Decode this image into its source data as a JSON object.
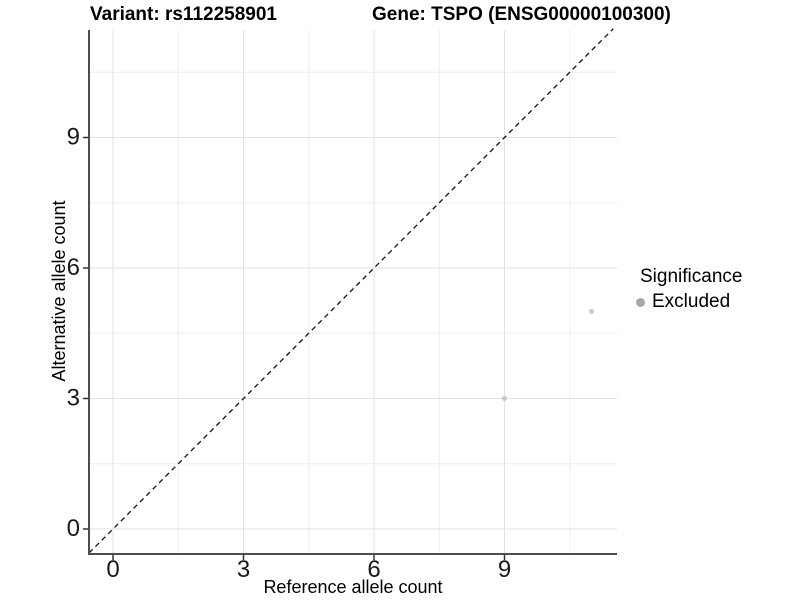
{
  "chart_data": {
    "type": "scatter",
    "title_left": "Variant: rs112258901",
    "title_right": "Gene: TSPO (ENSG00000100300)",
    "xlabel": "Reference allele count",
    "ylabel": "Alternative allele count",
    "xlim": [
      -0.55,
      11.6
    ],
    "ylim": [
      -0.55,
      11.5
    ],
    "x_ticks": [
      0,
      3,
      6,
      9
    ],
    "y_ticks": [
      0,
      3,
      6,
      9
    ],
    "grid": {
      "major": [
        0,
        3,
        6,
        9
      ],
      "minor": [
        1.5,
        4.5,
        7.5,
        10.5
      ],
      "color_major": "#e2e2e2",
      "color_minor": "#ededed"
    },
    "reference_line": {
      "type": "identity",
      "style": "dashed",
      "color": "#111111"
    },
    "series": [
      {
        "name": "Excluded",
        "color": "#c6c6c6",
        "points": [
          [
            9,
            3
          ],
          [
            11,
            5
          ]
        ]
      }
    ],
    "legend": {
      "title": "Significance",
      "position": "right",
      "items": [
        {
          "label": "Excluded",
          "color": "#a8a8a8"
        }
      ]
    },
    "colors": {
      "axis_line": "#4d4d4d",
      "tick_mark": "#333333",
      "tick_label": "#1a1a1a"
    }
  }
}
